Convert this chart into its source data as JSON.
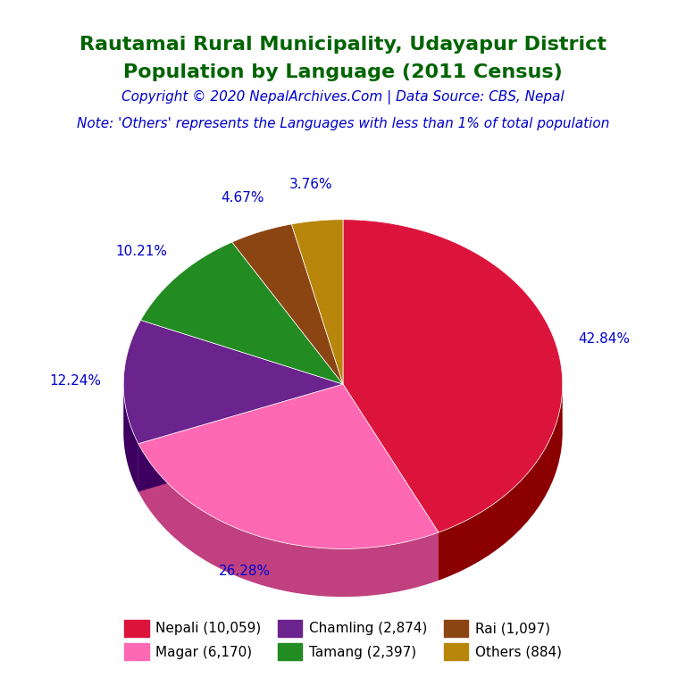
{
  "title_line1": "Rautamai Rural Municipality, Udayapur District",
  "title_line2": "Population by Language (2011 Census)",
  "title_color": "#006400",
  "copyright_text": "Copyright © 2020 NepalArchives.Com | Data Source: CBS, Nepal",
  "copyright_color": "#0000CD",
  "note_text": "Note: 'Others' represents the Languages with less than 1% of total population",
  "note_color": "#0000CD",
  "labels": [
    "Nepali",
    "Magar",
    "Chamling",
    "Tamang",
    "Rai",
    "Others"
  ],
  "values": [
    10059,
    6170,
    2874,
    2397,
    1097,
    884
  ],
  "percentages": [
    "42.84%",
    "26.28%",
    "12.24%",
    "10.21%",
    "4.67%",
    "3.76%"
  ],
  "colors": [
    "#DC143C",
    "#FF69B4",
    "#6B238E",
    "#228B22",
    "#8B4513",
    "#B8860B"
  ],
  "shadow_colors": [
    "#8B0000",
    "#C04080",
    "#3D0060",
    "#145214",
    "#5C2D09",
    "#7A5C00"
  ],
  "legend_labels": [
    "Nepali (10,059)",
    "Magar (6,170)",
    "Chamling (2,874)",
    "Tamang (2,397)",
    "Rai (1,097)",
    "Others (884)"
  ],
  "legend_colors": [
    "#DC143C",
    "#FF69B4",
    "#6B238E",
    "#228B22",
    "#8B4513",
    "#B8860B"
  ],
  "label_color": "#0000CD",
  "background_color": "#FFFFFF",
  "title_fontsize": 16,
  "copyright_fontsize": 11,
  "note_fontsize": 11,
  "label_fontsize": 11,
  "legend_fontsize": 11
}
